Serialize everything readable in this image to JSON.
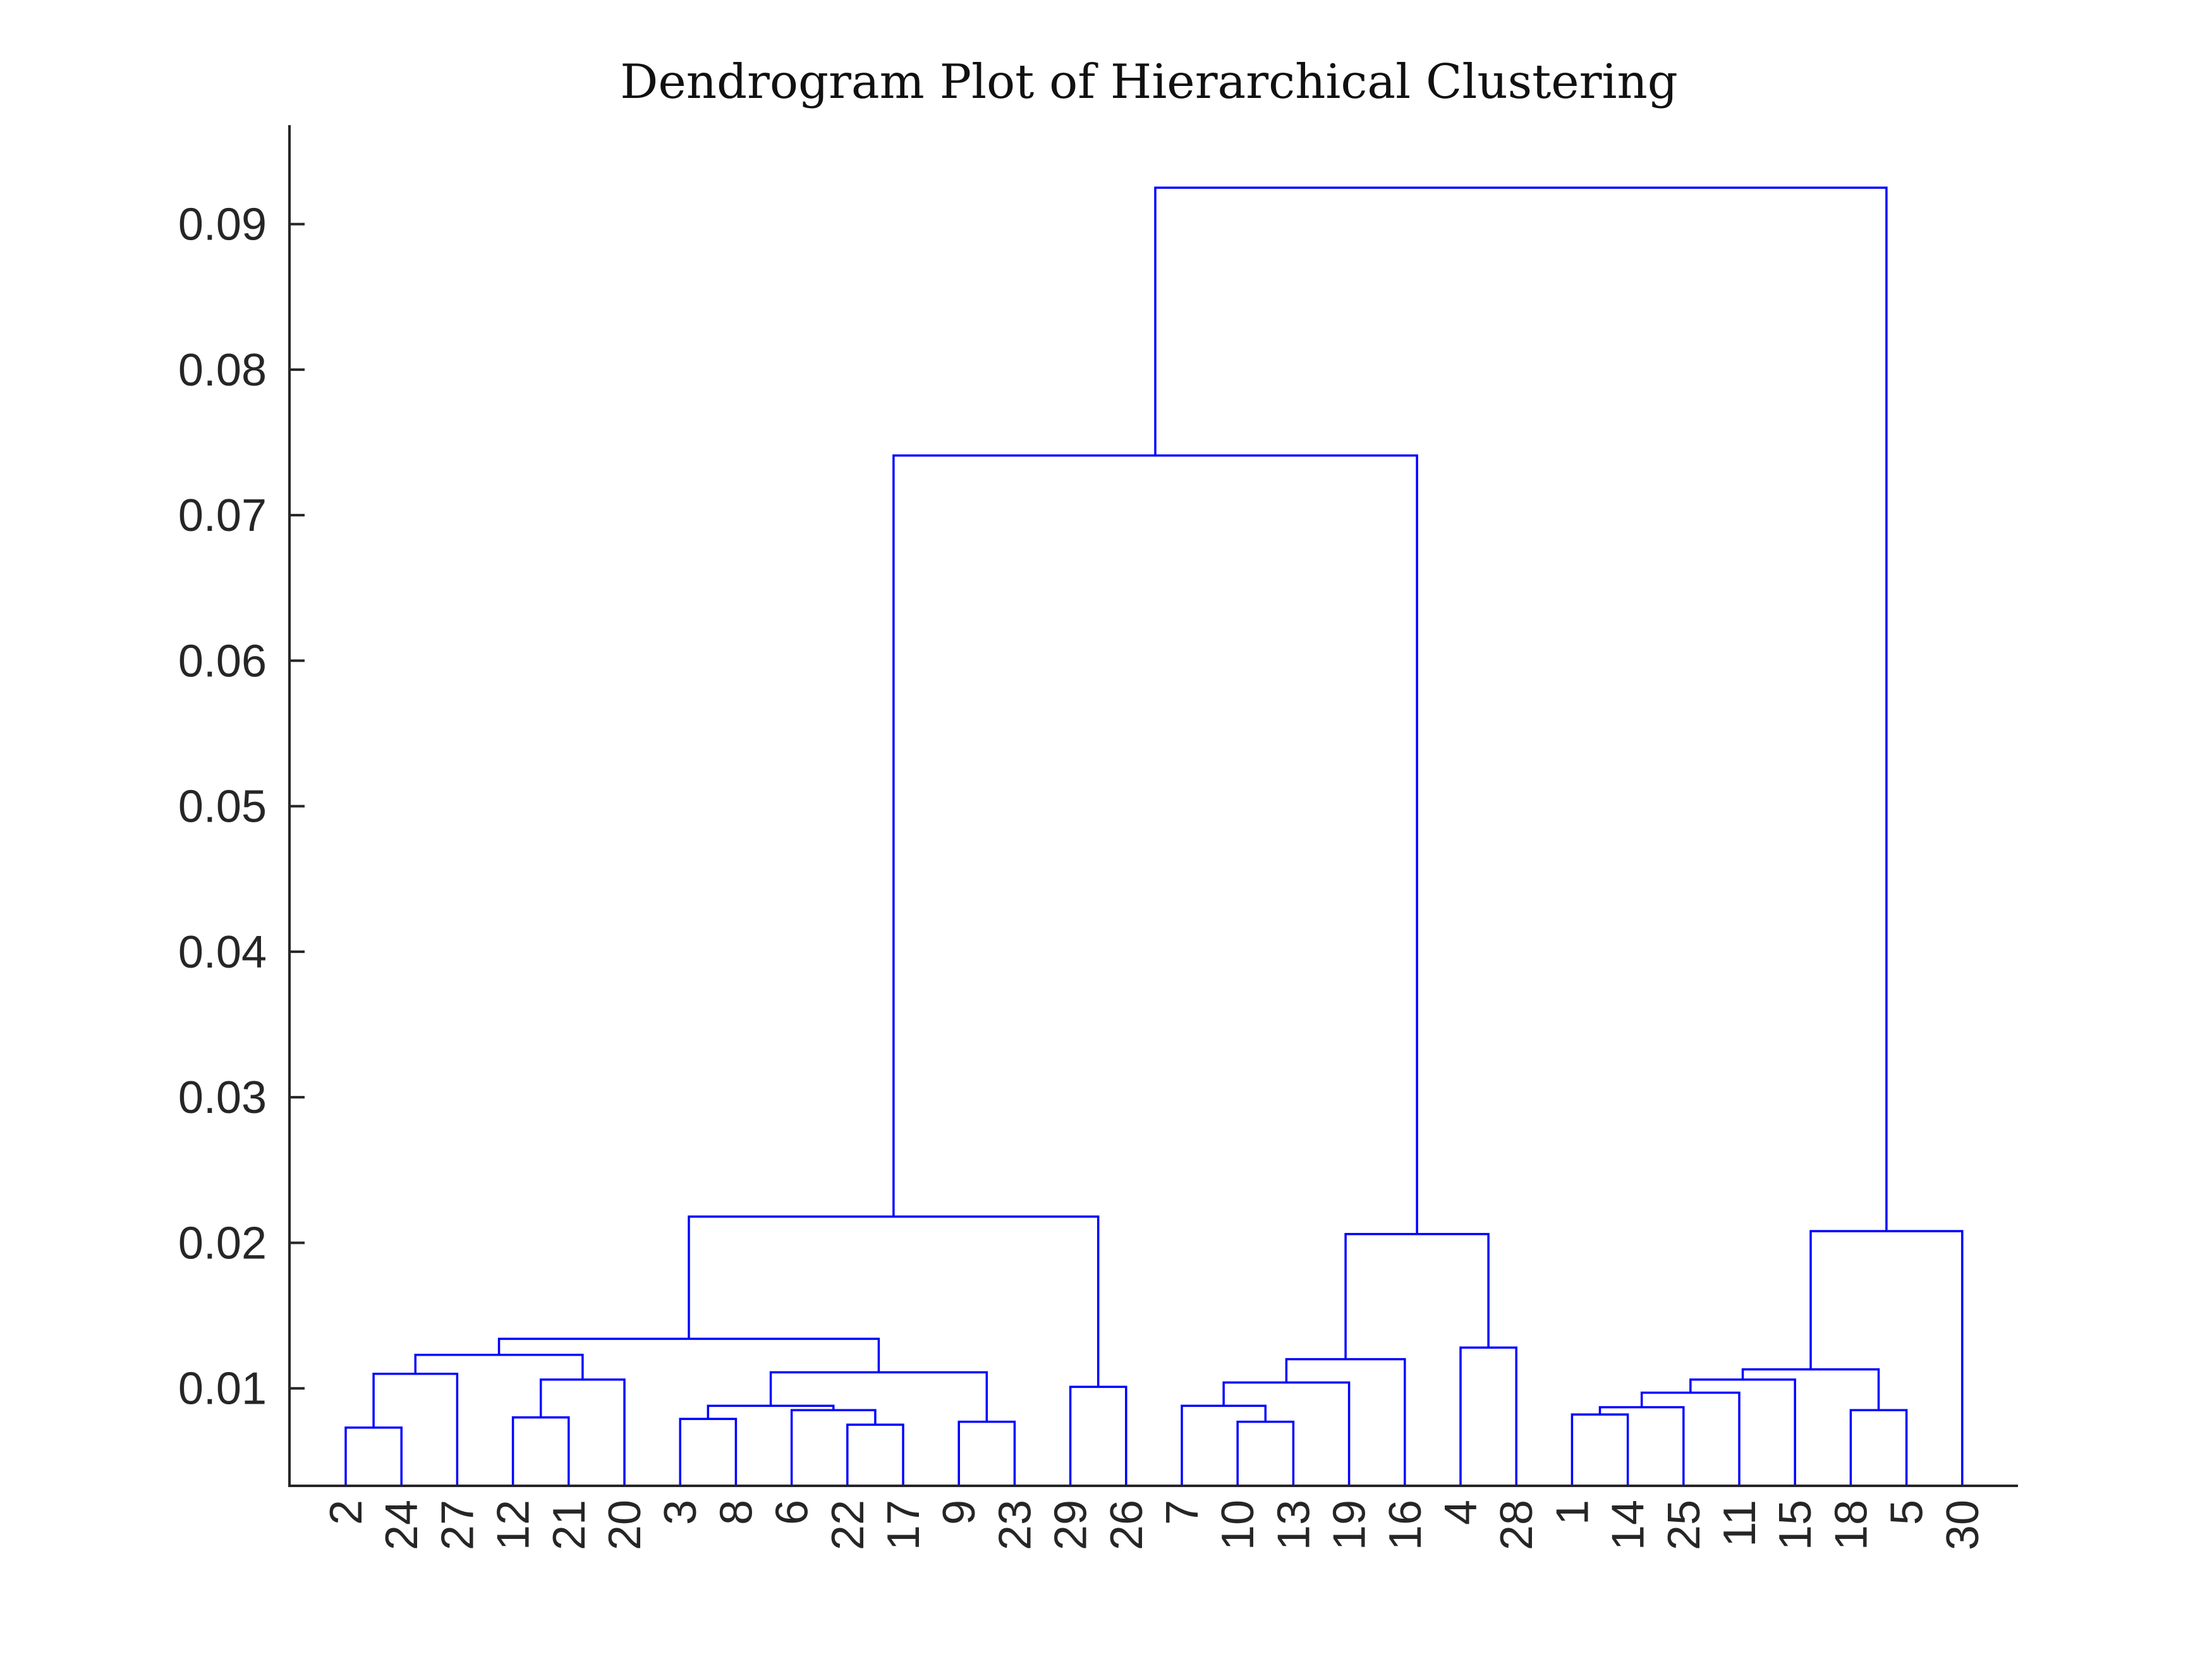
{
  "chart_data": {
    "type": "dendrogram",
    "title": "Dendrogram Plot of Hierarchical Clustering",
    "xlabel": "",
    "ylabel": "",
    "ylim": [
      0.0033,
      0.0968
    ],
    "yticks": [
      0.01,
      0.02,
      0.03,
      0.04,
      0.05,
      0.06,
      0.07,
      0.08,
      0.09
    ],
    "ytick_labels": [
      "0.01",
      "0.02",
      "0.03",
      "0.04",
      "0.05",
      "0.06",
      "0.07",
      "0.08",
      "0.09"
    ],
    "leaf_order": [
      "2",
      "24",
      "27",
      "12",
      "21",
      "20",
      "3",
      "8",
      "6",
      "22",
      "17",
      "9",
      "23",
      "29",
      "26",
      "7",
      "10",
      "13",
      "19",
      "16",
      "4",
      "28",
      "1",
      "14",
      "25",
      "11",
      "15",
      "18",
      "5",
      "30"
    ],
    "links": [
      {
        "left": "2",
        "right": "24",
        "height": 0.0073
      },
      {
        "left": "12",
        "right": "21",
        "height": 0.008
      },
      {
        "left": "3",
        "right": "8",
        "height": 0.0079
      },
      {
        "left": "22",
        "right": "17",
        "height": 0.0075
      },
      {
        "left": "9",
        "right": "23",
        "height": 0.0077
      },
      {
        "left": "10",
        "right": "13",
        "height": 0.0077
      },
      {
        "left": "1",
        "right": "14",
        "height": 0.0082
      },
      {
        "left": "18",
        "right": "5",
        "height": 0.0085
      },
      {
        "left": "29",
        "right": "26",
        "height": 0.0101
      },
      {
        "left": "4",
        "right": "28",
        "height": 0.0128
      },
      {
        "left": "(2,24)",
        "right": "27",
        "height": 0.011
      },
      {
        "left": "(12,21)",
        "right": "20",
        "height": 0.0106
      },
      {
        "left": "6",
        "right": "(22,17)",
        "height": 0.0085
      },
      {
        "left": "(3,8)",
        "right": "(6,22,17)",
        "height": 0.0088
      },
      {
        "left": "(3,8,6,22,17)",
        "right": "(9,23)",
        "height": 0.0111
      },
      {
        "left": "(2,24,27)",
        "right": "(12,21,20)",
        "height": 0.0123
      },
      {
        "left": "(2,...,20)",
        "right": "(3,...,23)",
        "height": 0.0134
      },
      {
        "left": "(2,...,23)",
        "right": "(29,26)",
        "height": 0.0218
      },
      {
        "left": "7",
        "right": "(10,13)",
        "height": 0.0088
      },
      {
        "left": "(7,10,13)",
        "right": "19",
        "height": 0.0104
      },
      {
        "left": "(7,10,13,19)",
        "right": "16",
        "height": 0.012
      },
      {
        "left": "(7,...,16)",
        "right": "(4,28)",
        "height": 0.0206
      },
      {
        "left": "(2,...,26)",
        "right": "(7,...,28)",
        "height": 0.0741
      },
      {
        "left": "(1,14)",
        "right": "25",
        "height": 0.0087
      },
      {
        "left": "(1,14,25)",
        "right": "11",
        "height": 0.0097
      },
      {
        "left": "(1,14,25,11)",
        "right": "15",
        "height": 0.0106
      },
      {
        "left": "(1,...,15)",
        "right": "(18,5)",
        "height": 0.0113
      },
      {
        "left": "(1,...,5)",
        "right": "30",
        "height": 0.0208
      },
      {
        "left": "(2,...,28)",
        "right": "(1,...,30)",
        "height": 0.0925
      }
    ],
    "line_color": "#0000ff",
    "grid": false,
    "legend": "none"
  }
}
